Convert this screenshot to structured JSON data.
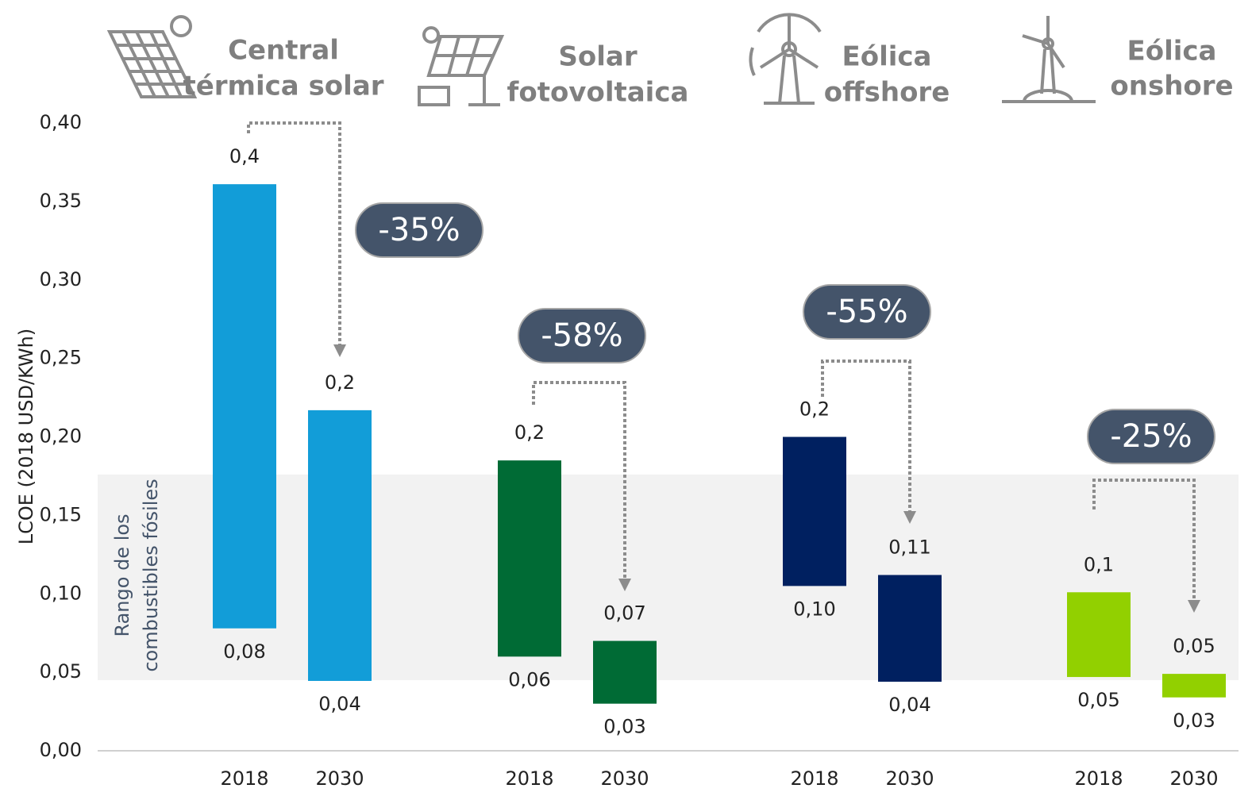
{
  "chart_data": {
    "type": "bar",
    "y_label": "LCOE (2018 USD/KWh)",
    "ylim": [
      0,
      0.4
    ],
    "yticks": [
      {
        "value": 0,
        "label": "0,00"
      },
      {
        "value": 0.05,
        "label": "0,05"
      },
      {
        "value": 0.1,
        "label": "0,10"
      },
      {
        "value": 0.15,
        "label": "0,15"
      },
      {
        "value": 0.2,
        "label": "0,20"
      },
      {
        "value": 0.25,
        "label": "0,25"
      },
      {
        "value": 0.3,
        "label": "0,30"
      },
      {
        "value": 0.35,
        "label": "0,35"
      },
      {
        "value": 0.4,
        "label": "0,40"
      }
    ],
    "band": {
      "lines": [
        "Rango de los",
        "combustibles fósiles"
      ],
      "low": 0.045,
      "high": 0.176,
      "color": "#f2f2f2"
    },
    "series": [
      {
        "name_lines": [
          "Central",
          "térmica solar"
        ],
        "color": "#129dd8",
        "categories": [
          "2018",
          "2030"
        ],
        "low": [
          0.078,
          0.0445
        ],
        "high": [
          0.361,
          0.217
        ],
        "low_labels": [
          "0,08",
          "0,04"
        ],
        "high_labels": [
          "0,4",
          "0,2"
        ],
        "annotation": "-35%"
      },
      {
        "name_lines": [
          "Solar",
          "fotovoltaica"
        ],
        "color": "#006b35",
        "categories": [
          "2018",
          "2030"
        ],
        "low": [
          0.06,
          0.03
        ],
        "high": [
          0.185,
          0.07
        ],
        "low_labels": [
          "0,06",
          "0,03"
        ],
        "high_labels": [
          "0,2",
          "0,07"
        ],
        "annotation": "-58%"
      },
      {
        "name_lines": [
          "Eólica",
          "offshore"
        ],
        "color": "#002060",
        "categories": [
          "2018",
          "2030"
        ],
        "low": [
          0.105,
          0.044
        ],
        "high": [
          0.2,
          0.112
        ],
        "low_labels": [
          "0,10",
          "0,04"
        ],
        "high_labels": [
          "0,2",
          "0,11"
        ],
        "annotation": "-55%"
      },
      {
        "name_lines": [
          "Eólica",
          "onshore"
        ],
        "color": "#92d000",
        "categories": [
          "2018",
          "2030"
        ],
        "low": [
          0.047,
          0.034
        ],
        "high": [
          0.101,
          0.049
        ],
        "low_labels": [
          "0,05",
          "0,03"
        ],
        "high_labels": [
          "0,1",
          "0,05"
        ],
        "annotation": "-25%"
      }
    ]
  }
}
